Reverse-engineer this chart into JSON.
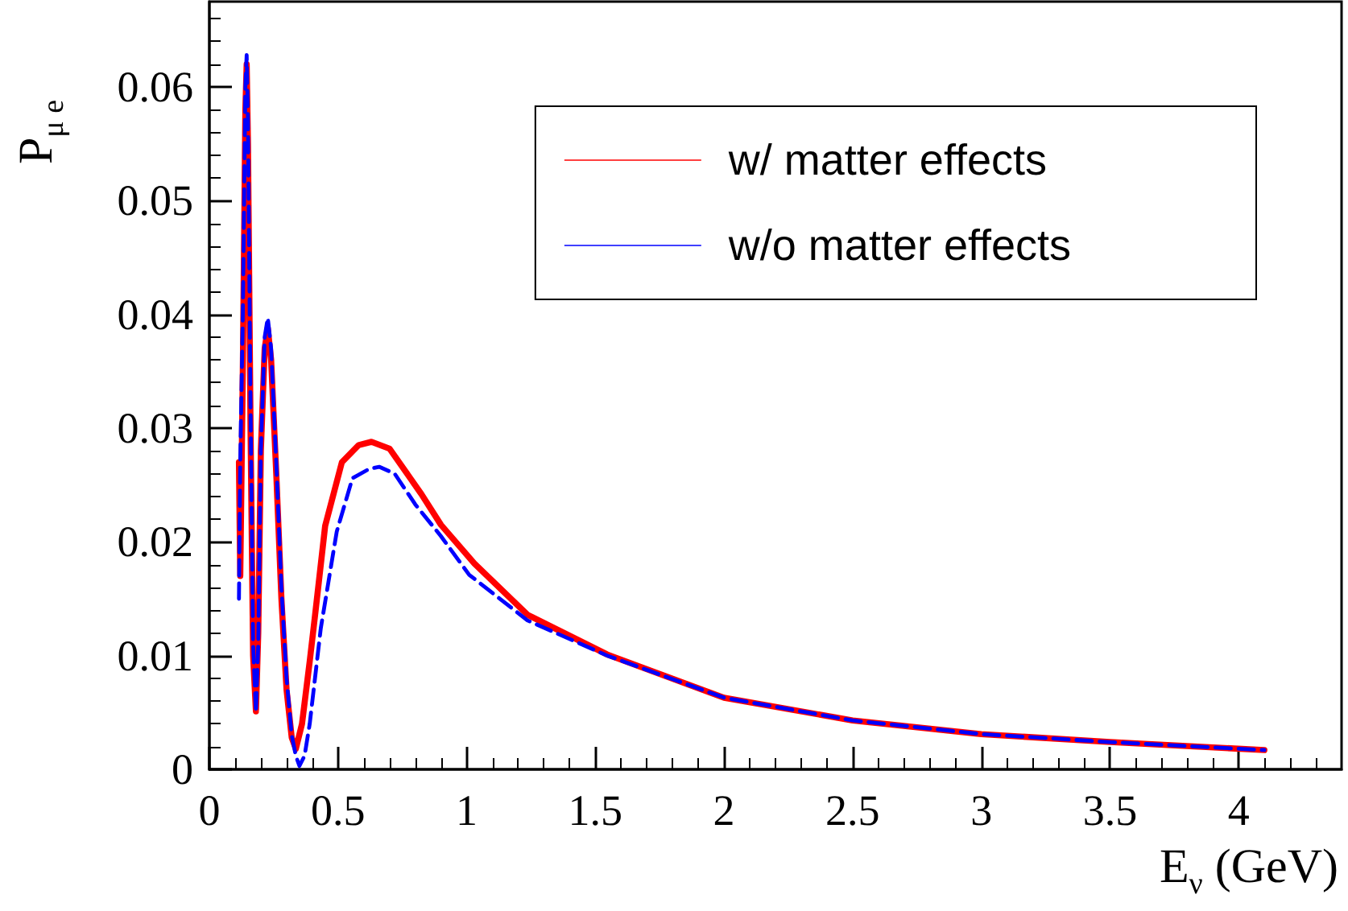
{
  "chart_data": {
    "type": "line",
    "xlabel": "E$_{ν}$ (GeV)",
    "ylabel": "P$_{μ e}$",
    "xlim": [
      0,
      4.4
    ],
    "xticks": [
      0,
      0.5,
      1,
      1.5,
      2,
      2.5,
      3,
      3.5,
      4
    ],
    "ylim": [
      0,
      0.0675
    ],
    "yticks": [
      0,
      0.01,
      0.02,
      0.03,
      0.04,
      0.05,
      0.06
    ],
    "grid": false,
    "legend": "top right",
    "marker": "none",
    "series": [
      {
        "name": "w/ matter effects",
        "color": "#ff0000",
        "line_style": "solid",
        "x": [
          0.115,
          0.12,
          0.13,
          0.14,
          0.145,
          0.15,
          0.16,
          0.17,
          0.181,
          0.19,
          0.2,
          0.215,
          0.227,
          0.24,
          0.26,
          0.28,
          0.3,
          0.32,
          0.336,
          0.36,
          0.39,
          0.41,
          0.45,
          0.515,
          0.58,
          0.63,
          0.7,
          0.824,
          0.9,
          1.03,
          1.236,
          1.546,
          2,
          2.5,
          3,
          3.5,
          4.1
        ],
        "values": [
          0.027,
          0.017,
          0.035,
          0.058,
          0.062,
          0.055,
          0.03,
          0.01,
          0.0051,
          0.012,
          0.028,
          0.037,
          0.0388,
          0.036,
          0.026,
          0.015,
          0.007,
          0.0028,
          0.0018,
          0.004,
          0.0095,
          0.0134,
          0.0214,
          0.027,
          0.0285,
          0.0288,
          0.0282,
          0.0242,
          0.0215,
          0.0181,
          0.0136,
          0.0101,
          0.0063,
          0.0043,
          0.0031,
          0.0024,
          0.0017
        ]
      },
      {
        "name": "w/o matter effects",
        "color": "#0000ff",
        "line_style": "dashed",
        "x": [
          0.115,
          0.12,
          0.13,
          0.14,
          0.145,
          0.15,
          0.16,
          0.17,
          0.181,
          0.19,
          0.2,
          0.215,
          0.227,
          0.24,
          0.26,
          0.28,
          0.3,
          0.32,
          0.336,
          0.35,
          0.37,
          0.39,
          0.433,
          0.495,
          0.556,
          0.62,
          0.66,
          0.72,
          0.8,
          0.9,
          1.01,
          1.236,
          1.546,
          2,
          2.5,
          3,
          3.5,
          4.1
        ],
        "values": [
          0.015,
          0.027,
          0.04,
          0.06,
          0.0628,
          0.057,
          0.032,
          0.011,
          0.005,
          0.011,
          0.028,
          0.038,
          0.0397,
          0.037,
          0.027,
          0.016,
          0.008,
          0.003,
          0.0012,
          0.0003,
          0.0012,
          0.004,
          0.0124,
          0.0209,
          0.0256,
          0.0264,
          0.0266,
          0.026,
          0.0233,
          0.0205,
          0.0171,
          0.0131,
          0.01,
          0.0063,
          0.0043,
          0.0031,
          0.0024,
          0.0017
        ]
      }
    ]
  }
}
